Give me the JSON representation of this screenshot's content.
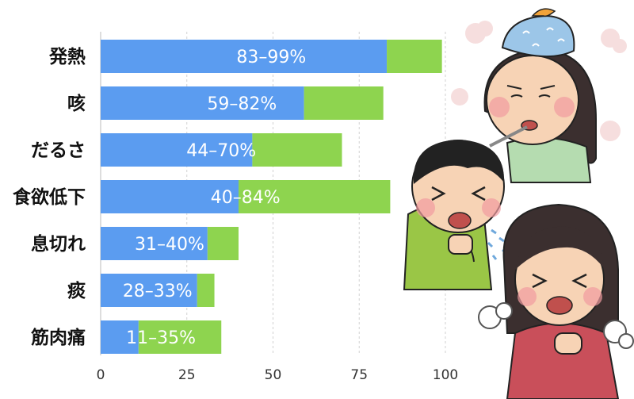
{
  "chart_data": {
    "type": "bar",
    "orientation": "horizontal",
    "stacked": true,
    "categories": [
      "発熱",
      "咳",
      "だるさ",
      "食欲低下",
      "息切れ",
      "痰",
      "筋肉痛"
    ],
    "series": [
      {
        "values": [
          83,
          59,
          44,
          40,
          31,
          28,
          11
        ],
        "color": "#5b9cf0"
      },
      {
        "values": [
          16,
          23,
          26,
          44,
          9,
          5,
          24
        ],
        "color": "#8ed44f"
      }
    ],
    "range_low": [
      83,
      59,
      44,
      40,
      31,
      28,
      11
    ],
    "range_high": [
      99,
      82,
      70,
      84,
      40,
      33,
      35
    ],
    "bar_labels": [
      "83–99%",
      "59–82%",
      "44–70%",
      "40–84%",
      "31–40%",
      "28–33%",
      "11–35%"
    ],
    "xlim": [
      0,
      100
    ],
    "xticks": [
      0,
      25,
      50,
      75,
      100
    ],
    "grid": true
  },
  "illustration": {
    "icons": [
      "sick-girl-fever-icon",
      "sick-boy-coughing-icon",
      "sick-woman-coughing-icon"
    ]
  }
}
